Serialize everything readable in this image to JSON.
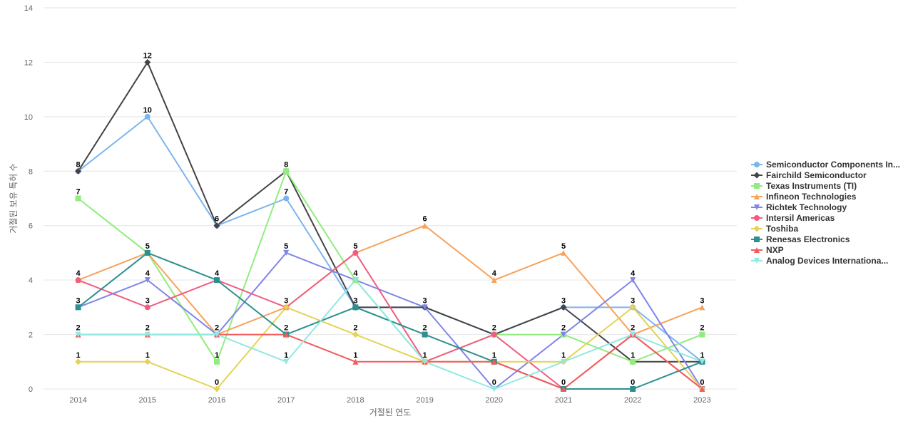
{
  "chart_data": {
    "type": "line",
    "title": "",
    "xlabel": "거절된 연도",
    "ylabel": "거절된 보유 특허 수",
    "ylim": [
      0,
      14
    ],
    "yticks": [
      0,
      2,
      4,
      6,
      8,
      10,
      12,
      14
    ],
    "categories": [
      "2014",
      "2015",
      "2016",
      "2017",
      "2018",
      "2019",
      "2020",
      "2021",
      "2022",
      "2023"
    ],
    "legend_position": "right",
    "series": [
      {
        "name": "Semiconductor Components In...",
        "color": "#7cb5ec",
        "marker": "circle",
        "values": [
          8,
          10,
          6,
          7,
          3,
          3,
          2,
          3,
          3,
          1
        ]
      },
      {
        "name": "Fairchild Semiconductor",
        "color": "#434348",
        "marker": "diamond",
        "values": [
          8,
          12,
          6,
          8,
          3,
          3,
          2,
          3,
          1,
          1
        ]
      },
      {
        "name": "Texas Instruments (TI)",
        "color": "#90ed7d",
        "marker": "square",
        "values": [
          7,
          5,
          1,
          8,
          4,
          1,
          2,
          2,
          1,
          2
        ]
      },
      {
        "name": "Infineon Technologies",
        "color": "#f7a35c",
        "marker": "triangle",
        "values": [
          4,
          5,
          2,
          3,
          5,
          6,
          4,
          5,
          2,
          3
        ]
      },
      {
        "name": "Richtek Technology",
        "color": "#8085e9",
        "marker": "triangle-down",
        "values": [
          3,
          4,
          2,
          5,
          4,
          3,
          0,
          2,
          4,
          0
        ]
      },
      {
        "name": "Intersil Americas",
        "color": "#f15c80",
        "marker": "circle",
        "values": [
          4,
          3,
          4,
          3,
          5,
          1,
          2,
          0,
          2,
          0
        ]
      },
      {
        "name": "Toshiba",
        "color": "#e4d354",
        "marker": "diamond",
        "values": [
          1,
          1,
          0,
          3,
          2,
          1,
          1,
          1,
          3,
          0
        ]
      },
      {
        "name": "Renesas Electronics",
        "color": "#2b908f",
        "marker": "square",
        "values": [
          3,
          5,
          4,
          2,
          3,
          2,
          1,
          0,
          0,
          1
        ]
      },
      {
        "name": "NXP",
        "color": "#f45b5b",
        "marker": "triangle",
        "values": [
          2,
          2,
          2,
          2,
          1,
          1,
          1,
          0,
          2,
          0
        ]
      },
      {
        "name": "Analog Devices Internationa...",
        "color": "#91e8e1",
        "marker": "triangle-down",
        "values": [
          2,
          2,
          2,
          1,
          4,
          1,
          0,
          1,
          2,
          1
        ]
      }
    ],
    "data_labels": [
      {
        "category": "2014",
        "value": 8,
        "text": "8"
      },
      {
        "category": "2014",
        "value": 7,
        "text": "7"
      },
      {
        "category": "2014",
        "value": 4,
        "text": "4"
      },
      {
        "category": "2014",
        "value": 3,
        "text": "3"
      },
      {
        "category": "2014",
        "value": 2,
        "text": "2"
      },
      {
        "category": "2014",
        "value": 1,
        "text": "1"
      },
      {
        "category": "2015",
        "value": 12,
        "text": "12"
      },
      {
        "category": "2015",
        "value": 10,
        "text": "10"
      },
      {
        "category": "2015",
        "value": 5,
        "text": "5"
      },
      {
        "category": "2015",
        "value": 4,
        "text": "4"
      },
      {
        "category": "2015",
        "value": 3,
        "text": "3"
      },
      {
        "category": "2015",
        "value": 2,
        "text": "2"
      },
      {
        "category": "2015",
        "value": 1,
        "text": "1"
      },
      {
        "category": "2016",
        "value": 6,
        "text": "6"
      },
      {
        "category": "2016",
        "value": 4,
        "text": "4"
      },
      {
        "category": "2016",
        "value": 2,
        "text": "2"
      },
      {
        "category": "2016",
        "value": 1,
        "text": "1"
      },
      {
        "category": "2016",
        "value": 0,
        "text": "0"
      },
      {
        "category": "2017",
        "value": 8,
        "text": "8"
      },
      {
        "category": "2017",
        "value": 7,
        "text": "7"
      },
      {
        "category": "2017",
        "value": 5,
        "text": "5"
      },
      {
        "category": "2017",
        "value": 3,
        "text": "3"
      },
      {
        "category": "2017",
        "value": 2,
        "text": "2"
      },
      {
        "category": "2017",
        "value": 1,
        "text": "1"
      },
      {
        "category": "2018",
        "value": 5,
        "text": "5"
      },
      {
        "category": "2018",
        "value": 4,
        "text": "4"
      },
      {
        "category": "2018",
        "value": 3,
        "text": "3"
      },
      {
        "category": "2018",
        "value": 2,
        "text": "2"
      },
      {
        "category": "2018",
        "value": 1,
        "text": "1"
      },
      {
        "category": "2019",
        "value": 6,
        "text": "6"
      },
      {
        "category": "2019",
        "value": 3,
        "text": "3"
      },
      {
        "category": "2019",
        "value": 2,
        "text": "2"
      },
      {
        "category": "2019",
        "value": 1,
        "text": "1"
      },
      {
        "category": "2020",
        "value": 4,
        "text": "4"
      },
      {
        "category": "2020",
        "value": 2,
        "text": "2"
      },
      {
        "category": "2020",
        "value": 1,
        "text": "1"
      },
      {
        "category": "2020",
        "value": 0,
        "text": "0"
      },
      {
        "category": "2021",
        "value": 5,
        "text": "5"
      },
      {
        "category": "2021",
        "value": 3,
        "text": "3"
      },
      {
        "category": "2021",
        "value": 2,
        "text": "2"
      },
      {
        "category": "2021",
        "value": 1,
        "text": "1"
      },
      {
        "category": "2021",
        "value": 0,
        "text": "0"
      },
      {
        "category": "2022",
        "value": 4,
        "text": "4"
      },
      {
        "category": "2022",
        "value": 3,
        "text": "3"
      },
      {
        "category": "2022",
        "value": 2,
        "text": "2"
      },
      {
        "category": "2022",
        "value": 1,
        "text": "1"
      },
      {
        "category": "2022",
        "value": 0,
        "text": "0"
      },
      {
        "category": "2023",
        "value": 3,
        "text": "3"
      },
      {
        "category": "2023",
        "value": 2,
        "text": "2"
      },
      {
        "category": "2023",
        "value": 1,
        "text": "1"
      },
      {
        "category": "2023",
        "value": 0,
        "text": "0"
      }
    ]
  }
}
